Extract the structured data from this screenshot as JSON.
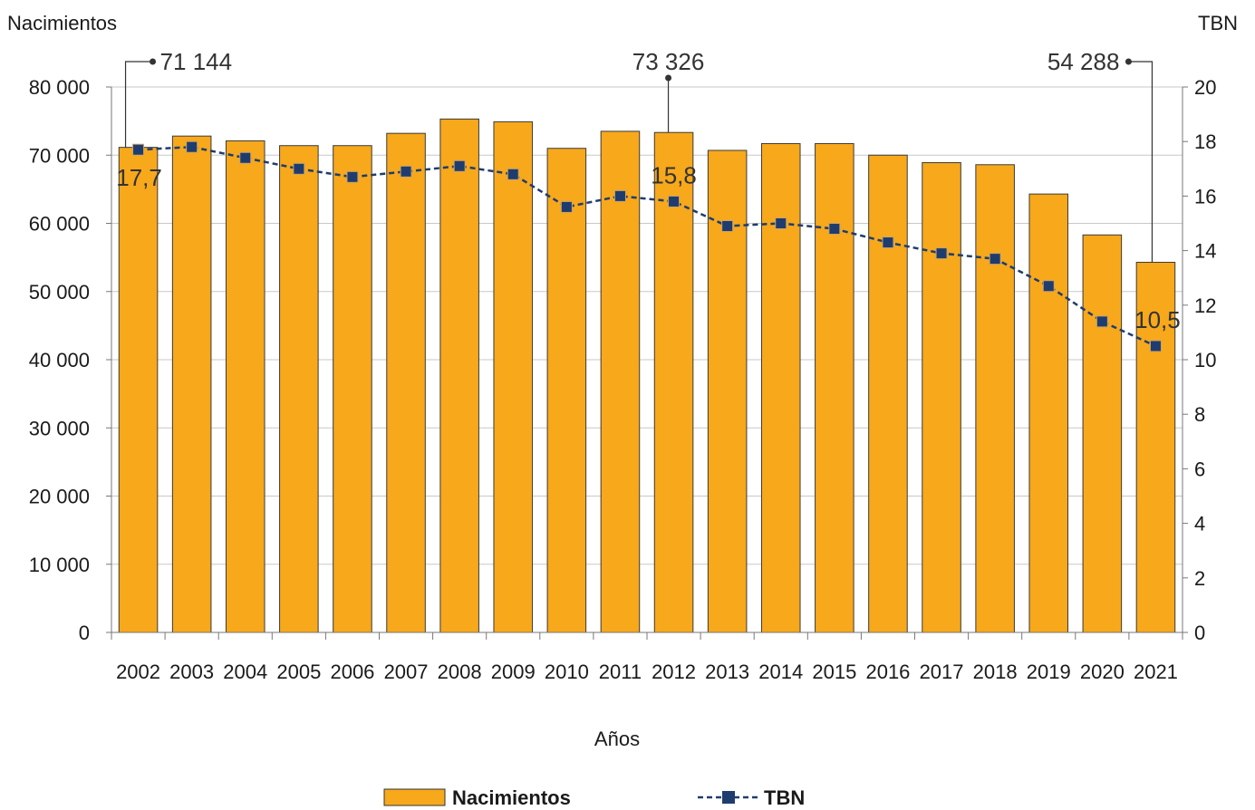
{
  "chart_data": {
    "type": "bar",
    "xlabel": "Años",
    "ylabel_left": "Nacimientos",
    "ylabel_right": "TBN",
    "ylim_left": [
      0,
      80000
    ],
    "yticks_left": [
      "0",
      "10 000",
      "20 000",
      "30 000",
      "40 000",
      "50 000",
      "60 000",
      "70 000",
      "80 000"
    ],
    "ylim_right": [
      0,
      20
    ],
    "yticks_right": [
      "0",
      "2",
      "4",
      "6",
      "8",
      "10",
      "12",
      "14",
      "16",
      "18",
      "20"
    ],
    "grid": true,
    "legend_position": "bottom",
    "categories": [
      "2002",
      "2003",
      "2004",
      "2005",
      "2006",
      "2007",
      "2008",
      "2009",
      "2010",
      "2011",
      "2012",
      "2013",
      "2014",
      "2015",
      "2016",
      "2017",
      "2018",
      "2019",
      "2020",
      "2021"
    ],
    "series": [
      {
        "name": "Nacimientos",
        "type": "bar",
        "axis": "left",
        "color": "#F7A81B",
        "values": [
          71144,
          72800,
          72100,
          71400,
          71400,
          73200,
          75300,
          74900,
          71000,
          73500,
          73326,
          70700,
          71700,
          71700,
          70000,
          68900,
          68600,
          64300,
          58300,
          54288
        ]
      },
      {
        "name": "TBN",
        "type": "line",
        "axis": "right",
        "color": "#1F3C6E",
        "line_style": "dashed",
        "marker": "square",
        "values": [
          17.7,
          17.8,
          17.4,
          17.0,
          16.7,
          16.9,
          17.1,
          16.8,
          15.6,
          16.0,
          15.8,
          14.9,
          15.0,
          14.8,
          14.3,
          13.9,
          13.7,
          12.7,
          11.4,
          10.5
        ]
      }
    ],
    "annotations": [
      {
        "text": "71 144",
        "category": "2002",
        "series": "Nacimientos"
      },
      {
        "text": "73 326",
        "category": "2012",
        "series": "Nacimientos"
      },
      {
        "text": "54 288",
        "category": "2021",
        "series": "Nacimientos"
      },
      {
        "text": "17,7",
        "category": "2002",
        "series": "TBN"
      },
      {
        "text": "15,8",
        "category": "2012",
        "series": "TBN"
      },
      {
        "text": "10,5",
        "category": "2021",
        "series": "TBN"
      }
    ]
  }
}
